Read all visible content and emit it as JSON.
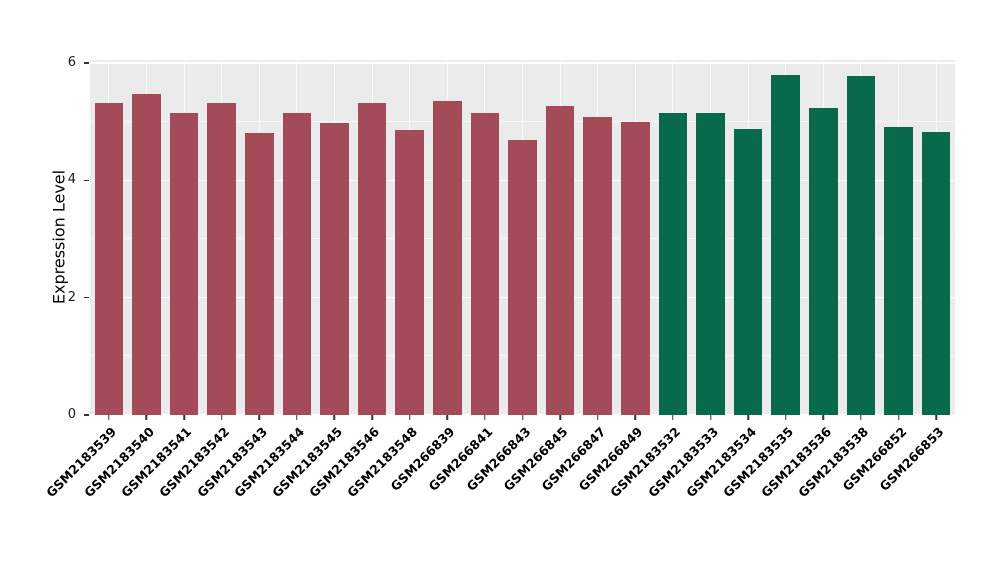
{
  "figure": {
    "background": "#FFFFFF",
    "plot_background": "#EBEBEB",
    "gridline_color": "#FFFFFF",
    "tick_color": "#333333"
  },
  "chart_data": {
    "type": "bar",
    "title": "",
    "xlabel": "",
    "ylabel": "Expression Level",
    "ylim": [
      0,
      6.05
    ],
    "yticks": [
      0,
      2,
      4,
      6
    ],
    "yticks_minor": [
      1,
      3,
      5
    ],
    "grid": "on",
    "legend": "none",
    "categories": [
      "GSM2183539",
      "GSM2183540",
      "GSM2183541",
      "GSM2183542",
      "GSM2183543",
      "GSM2183544",
      "GSM2183545",
      "GSM2183546",
      "GSM2183548",
      "GSM266839",
      "GSM266841",
      "GSM266843",
      "GSM266845",
      "GSM266847",
      "GSM266849",
      "GSM2183532",
      "GSM2183533",
      "GSM2183534",
      "GSM2183535",
      "GSM2183536",
      "GSM2183538",
      "GSM266852",
      "GSM266853"
    ],
    "values": [
      5.31,
      5.47,
      5.14,
      5.32,
      4.81,
      5.14,
      4.98,
      5.31,
      4.85,
      5.36,
      5.15,
      4.68,
      5.27,
      5.08,
      5.0,
      5.15,
      5.15,
      4.88,
      5.8,
      5.24,
      5.77,
      4.9,
      4.83
    ],
    "groups": [
      {
        "name": "group-1",
        "color": "#A34B58",
        "start_index": 0,
        "end_index": 14
      },
      {
        "name": "group-2",
        "color": "#08694B",
        "start_index": 15,
        "end_index": 22
      }
    ]
  }
}
